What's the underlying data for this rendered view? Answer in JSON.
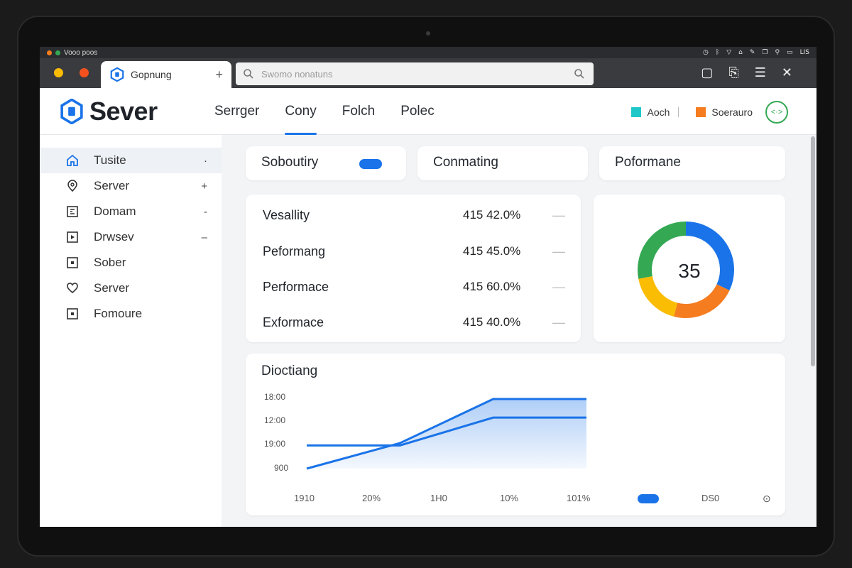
{
  "system_bar": {
    "title": "Vooo poos",
    "status": "LIS"
  },
  "browser": {
    "tab_title": "Gopnung",
    "new_tab": "+",
    "address_placeholder": "Swomo nonatuns"
  },
  "app": {
    "brand": "Sever"
  },
  "topnav": [
    {
      "label": "Serrger",
      "active": false
    },
    {
      "label": "Cony",
      "active": true
    },
    {
      "label": "Folch",
      "active": false
    },
    {
      "label": "Polec",
      "active": false
    }
  ],
  "header_legend": [
    {
      "label": "Aoch",
      "color": "#1ec8c8"
    },
    {
      "label": "Soerauro",
      "color": "#f57c1f"
    }
  ],
  "sidebar": {
    "items": [
      {
        "label": "Tusite",
        "icon": "home-icon",
        "trail": "·",
        "active": true
      },
      {
        "label": "Server",
        "icon": "location-icon",
        "trail": "+",
        "active": false
      },
      {
        "label": "Domam",
        "icon": "grid-icon",
        "trail": "-",
        "active": false
      },
      {
        "label": "Drwsev",
        "icon": "square-icon",
        "trail": "–",
        "active": false
      },
      {
        "label": "Sober",
        "icon": "square-icon",
        "trail": "",
        "active": false
      },
      {
        "label": "Server",
        "icon": "heart-icon",
        "trail": "",
        "active": false
      },
      {
        "label": "Fomoure",
        "icon": "square-icon",
        "trail": "",
        "active": false
      }
    ]
  },
  "summary_cards": [
    {
      "title": "Soboutiry"
    },
    {
      "title": "Conmating"
    },
    {
      "title": "Poformane"
    }
  ],
  "metrics": [
    {
      "label": "Vesallity",
      "value": "415 42.0%"
    },
    {
      "label": "Peformang",
      "value": "415 45.0%"
    },
    {
      "label": "Performace",
      "value": "415 60.0%"
    },
    {
      "label": "Exformace",
      "value": "415 40.0%"
    }
  ],
  "donut": {
    "center_label": "35",
    "segments": [
      {
        "color": "#1a73e8",
        "fraction": 0.32
      },
      {
        "color": "#f57c1f",
        "fraction": 0.22
      },
      {
        "color": "#fbbc04",
        "fraction": 0.18
      },
      {
        "color": "#34a853",
        "fraction": 0.28
      }
    ]
  },
  "chart_data": {
    "type": "area",
    "title": "Dioctiang",
    "y_ticks": [
      "18:00",
      "12:00",
      "19:00",
      "900"
    ],
    "x_ticks": [
      "1910",
      "20%",
      "1H0",
      "10%",
      "101%",
      "DS0"
    ],
    "ylim": [
      0,
      3
    ],
    "x": [
      0,
      1,
      2,
      3
    ],
    "series": [
      {
        "values": [
          0.0,
          1.1,
          3.0,
          3.0
        ],
        "color": "#1a73e8"
      },
      {
        "values": [
          1.0,
          1.0,
          2.2,
          2.2
        ],
        "color": "#1a73e8"
      }
    ]
  }
}
